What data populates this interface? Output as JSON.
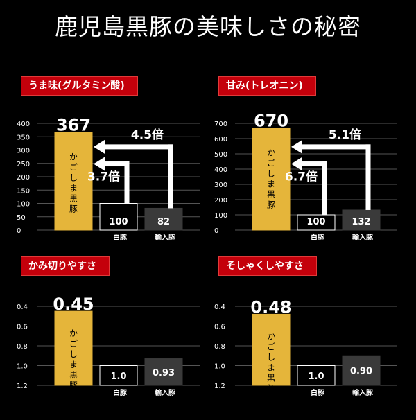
{
  "page": {
    "title": "鹿児島黒豚の美味しさの秘密"
  },
  "colors": {
    "background": "#000000",
    "badge": "#c4000b",
    "gold": "#e5b53a",
    "white_bar": "#ffffff",
    "gray_bar": "#3a3a3a",
    "grid": "#555555"
  },
  "chart_data": [
    {
      "id": "umami",
      "type": "bar",
      "title": "うま味(グルタミン酸)",
      "categories": [
        "かごしま黒豚",
        "白豚",
        "輸入豚"
      ],
      "values": [
        367,
        100,
        82
      ],
      "value_labels": [
        "367",
        "100",
        "82"
      ],
      "ylim": [
        0,
        400
      ],
      "yticks": [
        "0",
        "50",
        "100",
        "150",
        "200",
        "250",
        "300",
        "350",
        "400"
      ],
      "yinverted": false,
      "grid": true,
      "callouts": [
        "4.5倍",
        "3.7倍"
      ]
    },
    {
      "id": "sweet",
      "type": "bar",
      "title": "甘み(トレオニン)",
      "categories": [
        "かごしま黒豚",
        "白豚",
        "輸入豚"
      ],
      "values": [
        670,
        100,
        132
      ],
      "value_labels": [
        "670",
        "100",
        "132"
      ],
      "ylim": [
        0,
        700
      ],
      "yticks": [
        "0",
        "100",
        "200",
        "300",
        "400",
        "500",
        "600",
        "700"
      ],
      "yinverted": false,
      "grid": true,
      "callouts": [
        "5.1倍",
        "6.7倍"
      ]
    },
    {
      "id": "cut",
      "type": "bar",
      "title": "かみ切りやすさ",
      "categories": [
        "かごしま黒豚",
        "白豚",
        "輸入豚"
      ],
      "values": [
        0.45,
        1.0,
        0.93
      ],
      "value_labels": [
        "0.45",
        "1.0",
        "0.93"
      ],
      "ylim": [
        0.4,
        1.2
      ],
      "yticks": [
        "0.4",
        "0.6",
        "0.8",
        "1.0",
        "1.2"
      ],
      "yinverted": true,
      "grid": true,
      "callouts": []
    },
    {
      "id": "chew",
      "type": "bar",
      "title": "そしゃくしやすさ",
      "categories": [
        "かごしま黒豚",
        "白豚",
        "輸入豚"
      ],
      "values": [
        0.48,
        1.0,
        0.9
      ],
      "value_labels": [
        "0.48",
        "1.0",
        "0.90"
      ],
      "ylim": [
        0.4,
        1.2
      ],
      "yticks": [
        "0.4",
        "0.6",
        "0.8",
        "1.0",
        "1.2"
      ],
      "yinverted": true,
      "grid": true,
      "callouts": []
    }
  ]
}
